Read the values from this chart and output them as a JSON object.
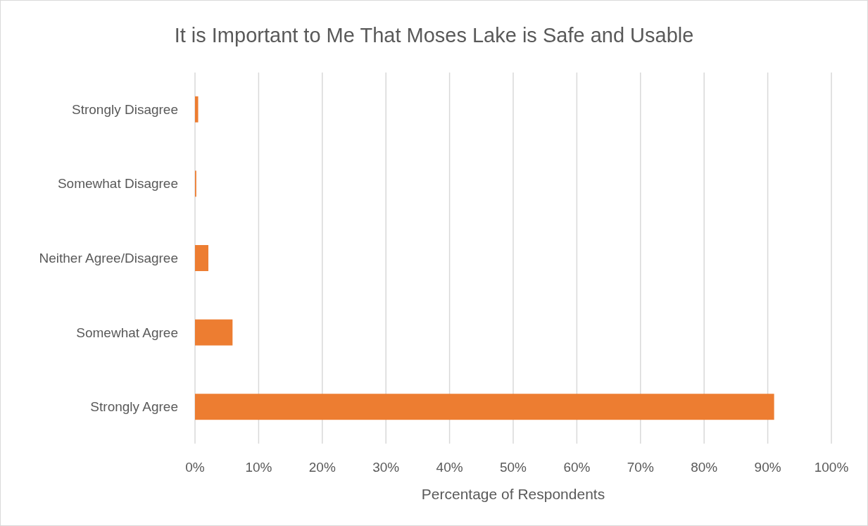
{
  "chart_data": {
    "type": "bar",
    "orientation": "horizontal",
    "title": "It is Important to Me That Moses Lake is Safe and Usable",
    "xlabel": "Percentage of Respondents",
    "categories": [
      "Strongly Disagree",
      "Somewhat Disagree",
      "Neither Agree/Disagree",
      "Somewhat Agree",
      "Strongly Agree"
    ],
    "values": [
      0.5,
      0.2,
      2.1,
      5.9,
      91.0
    ],
    "color": "#ed7d31",
    "xlim": [
      0,
      100
    ],
    "xticks": [
      {
        "value": 0,
        "label": "0%"
      },
      {
        "value": 10,
        "label": "10%"
      },
      {
        "value": 20,
        "label": "20%"
      },
      {
        "value": 30,
        "label": "30%"
      },
      {
        "value": 40,
        "label": "40%"
      },
      {
        "value": 50,
        "label": "50%"
      },
      {
        "value": 60,
        "label": "60%"
      },
      {
        "value": 70,
        "label": "70%"
      },
      {
        "value": 80,
        "label": "80%"
      },
      {
        "value": 90,
        "label": "90%"
      },
      {
        "value": 100,
        "label": "100%"
      }
    ],
    "grid": "x"
  }
}
